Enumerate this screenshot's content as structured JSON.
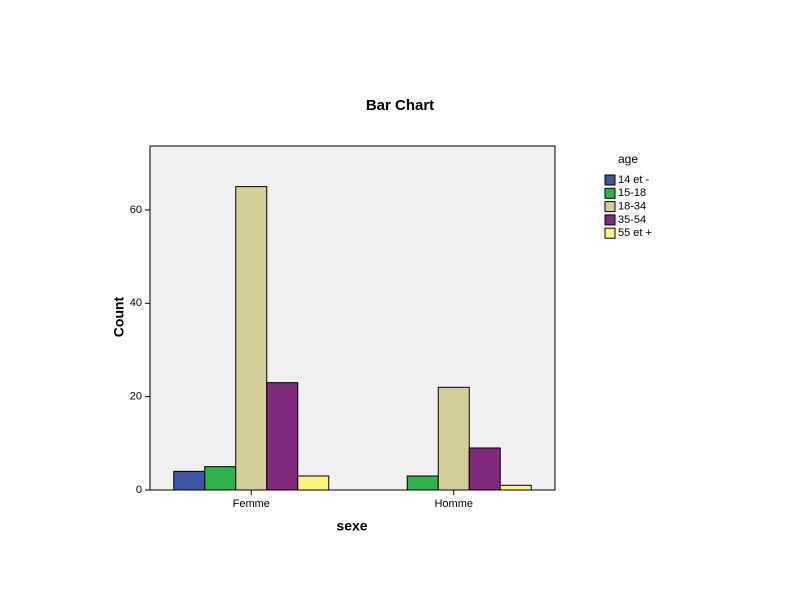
{
  "chart_data": {
    "type": "bar",
    "title": "Bar Chart",
    "x_label": "sexe",
    "y_label": "Count",
    "categories": [
      "Femme",
      "Homme"
    ],
    "legend_title": "age",
    "series": [
      {
        "name": "14 et -",
        "color": "#3e55a4",
        "values": [
          4,
          0
        ]
      },
      {
        "name": "15-18",
        "color": "#2db34a",
        "values": [
          5,
          3
        ]
      },
      {
        "name": "18-34",
        "color": "#d4cf99",
        "values": [
          65,
          22
        ]
      },
      {
        "name": "35-54",
        "color": "#7f2a7c",
        "values": [
          23,
          9
        ]
      },
      {
        "name": "55 et +",
        "color": "#fbf57c",
        "values": [
          3,
          1
        ]
      }
    ],
    "ylim": [
      0,
      73.7
    ],
    "yticks": [
      0,
      20,
      40,
      60
    ],
    "grid": false,
    "legend": "right"
  }
}
